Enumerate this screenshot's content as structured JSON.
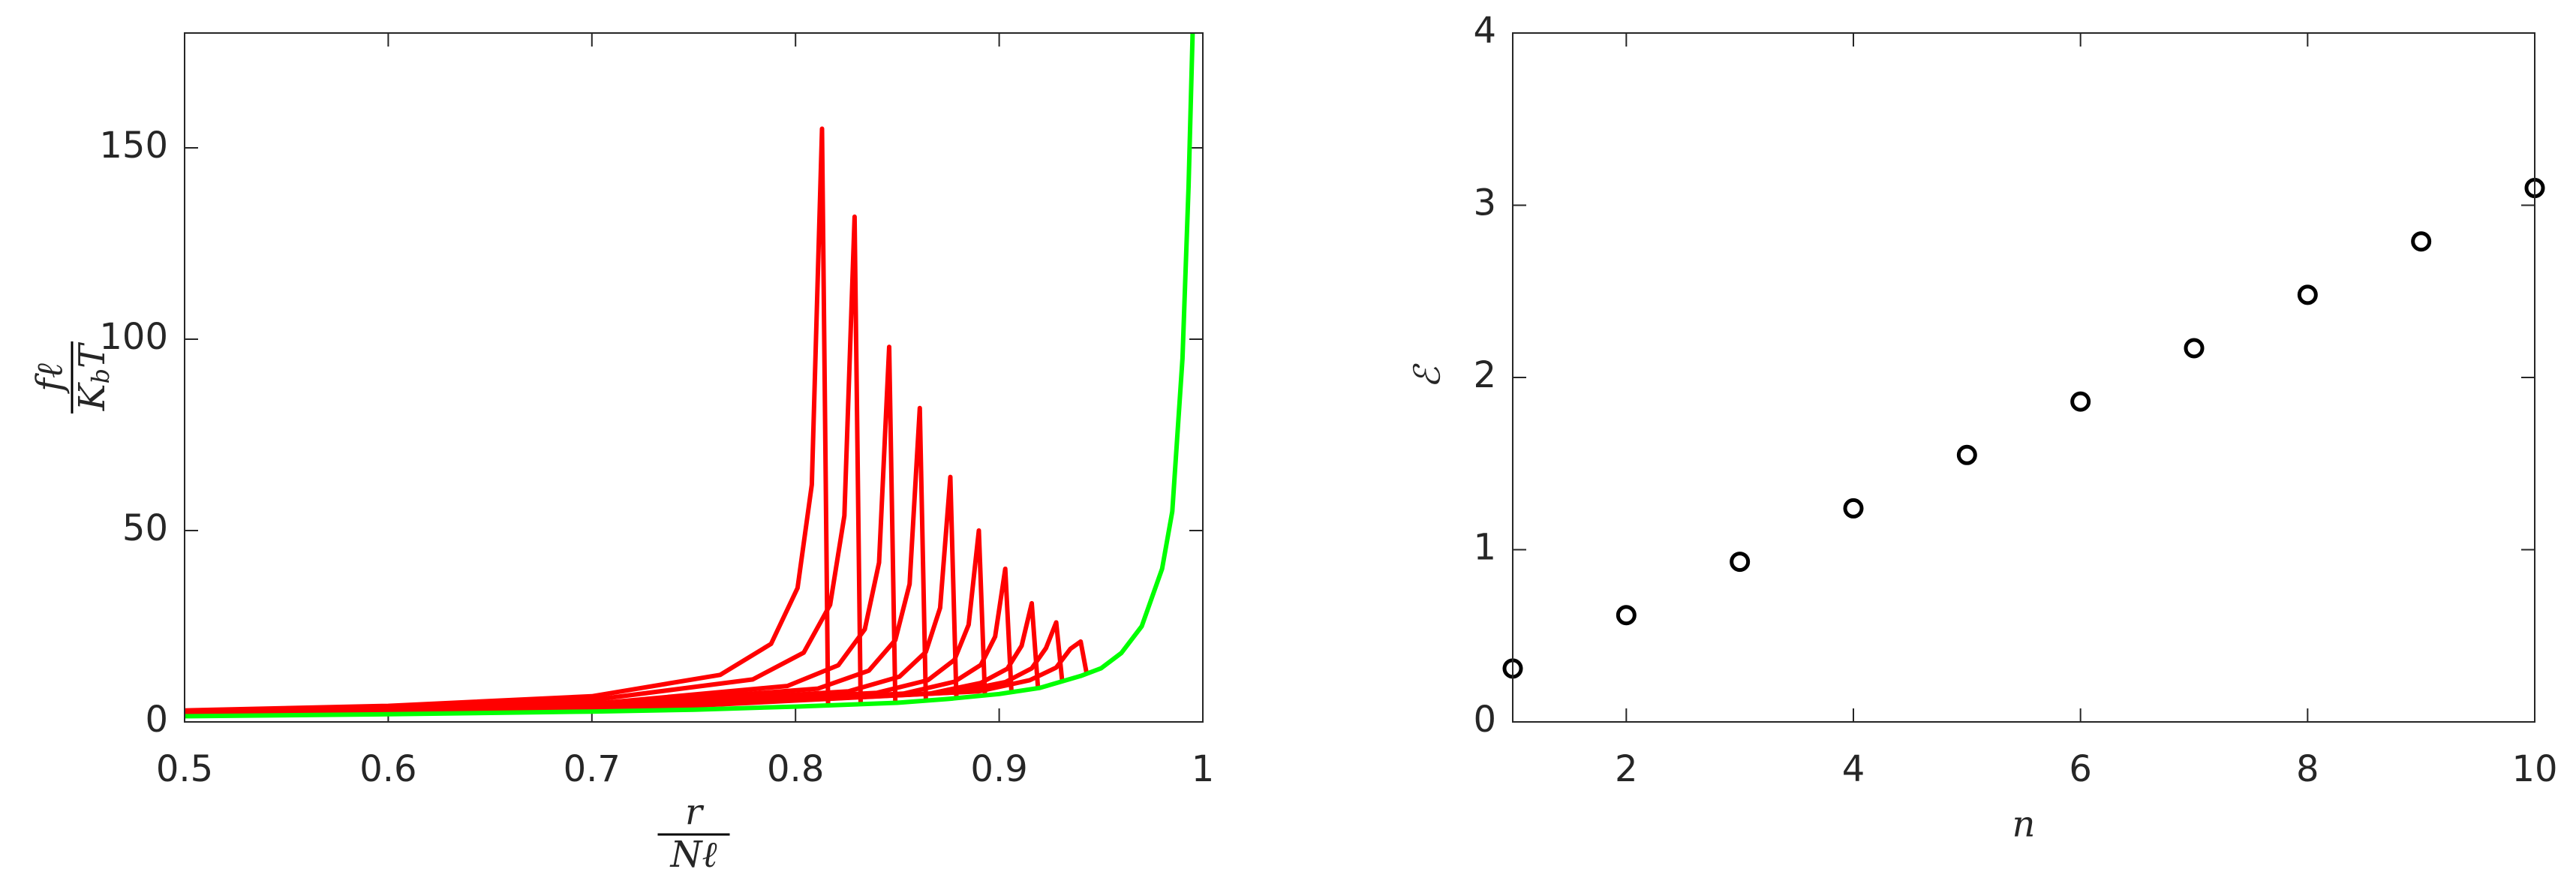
{
  "chart_data": [
    {
      "type": "line",
      "xlabel": {
        "numerator": "r",
        "denominator": [
          "N",
          "ℓ"
        ]
      },
      "ylabel": {
        "numerator": "fℓ",
        "denominator": [
          "K",
          "b",
          "T"
        ]
      },
      "xlim": [
        0.5,
        1
      ],
      "ylim": [
        0,
        180
      ],
      "xticks": [
        0.5,
        0.6,
        0.7,
        0.8,
        0.9,
        1
      ],
      "yticks": [
        0,
        50,
        100,
        150
      ],
      "grid": false,
      "series": [
        {
          "color": "#ff0000",
          "x": [
            0.5,
            0.6,
            0.7,
            0.763,
            0.788,
            0.801,
            0.808,
            0.813,
            0.816
          ],
          "values": [
            3.0,
            4.2,
            6.7,
            12.3,
            20.4,
            35,
            62,
            155,
            4.2
          ]
        },
        {
          "color": "#ff0000",
          "x": [
            0.5,
            0.6,
            0.7,
            0.779,
            0.804,
            0.817,
            0.824,
            0.829,
            0.832
          ],
          "values": [
            2.7,
            3.7,
            5.7,
            11.1,
            18.1,
            30.6,
            53.9,
            132,
            4.6
          ]
        },
        {
          "color": "#ff0000",
          "x": [
            0.5,
            0.6,
            0.7,
            0.796,
            0.821,
            0.834,
            0.841,
            0.846,
            0.849
          ],
          "values": [
            2.35,
            3.2,
            4.7,
            9.4,
            14.8,
            24.2,
            41.6,
            98,
            5
          ]
        },
        {
          "color": "#ff0000",
          "x": [
            0.5,
            0.6,
            0.7,
            0.811,
            0.836,
            0.849,
            0.856,
            0.861,
            0.864
          ],
          "values": [
            2.2,
            2.9,
            4.2,
            8.7,
            13.4,
            21.4,
            36,
            82,
            5.5
          ]
        },
        {
          "color": "#ff0000",
          "x": [
            0.5,
            0.6,
            0.7,
            0.826,
            0.851,
            0.864,
            0.871,
            0.876,
            0.879
          ],
          "values": [
            2,
            2.7,
            3.8,
            8,
            11.8,
            18.3,
            29.8,
            64,
            6.2
          ]
        },
        {
          "color": "#ff0000",
          "x": [
            0.5,
            0.6,
            0.7,
            0.84,
            0.865,
            0.878,
            0.885,
            0.89,
            0.893
          ],
          "values": [
            1.9,
            2.5,
            3.5,
            7.6,
            10.9,
            16.2,
            25.4,
            50,
            7.1
          ]
        },
        {
          "color": "#ff0000",
          "x": [
            0.5,
            0.6,
            0.7,
            0.853,
            0.878,
            0.891,
            0.898,
            0.903,
            0.906
          ],
          "values": [
            1.8,
            2.4,
            3.3,
            7.4,
            10.5,
            14.9,
            22.3,
            40,
            8
          ]
        },
        {
          "color": "#ff0000",
          "x": [
            0.5,
            0.6,
            0.7,
            0.866,
            0.891,
            0.904,
            0.911,
            0.916,
            0.919
          ],
          "values": [
            1.7,
            2.3,
            3.1,
            7.4,
            10.2,
            13.9,
            19.9,
            31,
            9.2
          ]
        },
        {
          "color": "#ff0000",
          "x": [
            0.5,
            0.6,
            0.7,
            0.878,
            0.903,
            0.916,
            0.923,
            0.928,
            0.931
          ],
          "values": [
            1.6,
            2.2,
            3,
            7.7,
            10.4,
            14,
            19.3,
            26,
            10.4
          ]
        },
        {
          "color": "#ff0000",
          "x": [
            0.5,
            0.6,
            0.7,
            0.89,
            0.915,
            0.928,
            0.935,
            0.94,
            0.943
          ],
          "values": [
            1.6,
            2.1,
            2.9,
            8,
            10.9,
            14.2,
            19.1,
            21,
            12.5
          ]
        },
        {
          "color": "#00ff00",
          "x": [
            0.5,
            0.6,
            0.7,
            0.75,
            0.8,
            0.85,
            0.875,
            0.9,
            0.92,
            0.94,
            0.95,
            0.96,
            0.97,
            0.98,
            0.985,
            0.99,
            0.993,
            0.995
          ],
          "values": [
            1.5,
            2,
            2.7,
            3.2,
            4,
            5,
            6,
            7.3,
            8.9,
            12,
            14,
            18,
            25,
            40,
            55,
            95,
            140,
            180
          ]
        }
      ]
    },
    {
      "type": "scatter",
      "xlabel": "n",
      "ylabel": "ℰ",
      "xlim": [
        1,
        10
      ],
      "ylim": [
        0,
        4
      ],
      "xticks": [
        2,
        4,
        6,
        8,
        10
      ],
      "yticks": [
        0,
        1,
        2,
        3,
        4
      ],
      "grid": false,
      "color": "#000000",
      "x": [
        1,
        2,
        3,
        4,
        5,
        6,
        7,
        8,
        9,
        10
      ],
      "values": [
        0.31,
        0.62,
        0.93,
        1.24,
        1.55,
        1.86,
        2.17,
        2.48,
        2.79,
        3.1
      ]
    }
  ]
}
